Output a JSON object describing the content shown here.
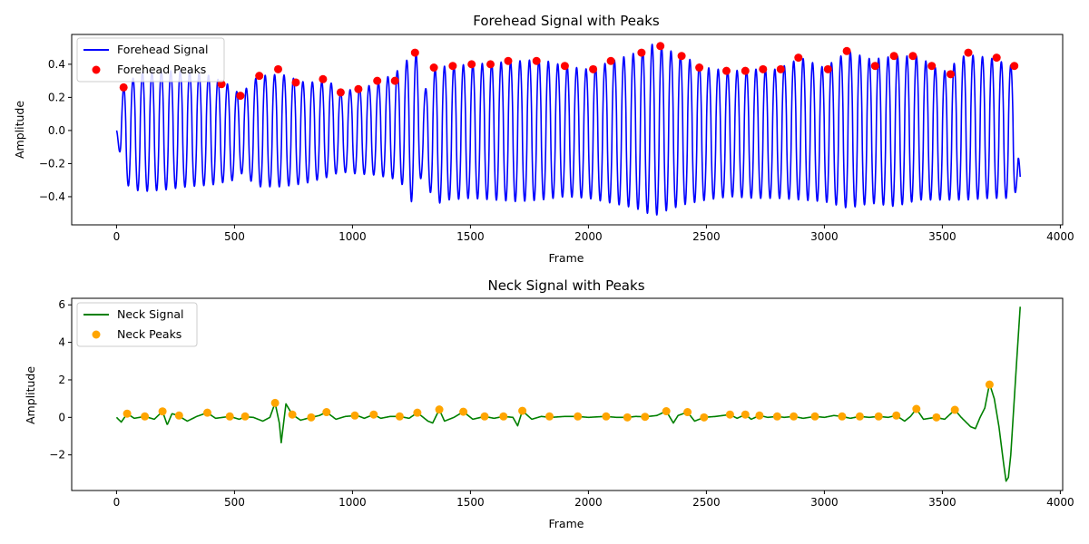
{
  "chart_data": [
    {
      "type": "line",
      "title": "Forehead Signal with Peaks",
      "xlabel": "Frame",
      "ylabel": "Amplitude",
      "xlim": [
        -190,
        4010
      ],
      "ylim": [
        -0.57,
        0.58
      ],
      "xticks": [
        0,
        500,
        1000,
        1500,
        2000,
        2500,
        3000,
        3500,
        4000
      ],
      "yticks": [
        -0.4,
        -0.2,
        0.0,
        0.2,
        0.4
      ],
      "ytick_labels": [
        "−0.4",
        "−0.2",
        "0.0",
        "0.2",
        "0.4"
      ],
      "legend_position": "upper-left",
      "colors": {
        "line": "#0000ff",
        "peaks": "#ff0000"
      },
      "series": [
        {
          "name": "Forehead Signal",
          "kind": "line",
          "x_start": 0,
          "x_end": 3830,
          "oscillation_period": 40,
          "envelope_x": [
            0,
            30,
            100,
            200,
            300,
            400,
            500,
            520,
            600,
            700,
            800,
            900,
            950,
            1000,
            1100,
            1200,
            1250,
            1270,
            1300,
            1350,
            1400,
            1500,
            1600,
            1700,
            1800,
            1900,
            2000,
            2100,
            2200,
            2250,
            2280,
            2300,
            2400,
            2500,
            2600,
            2700,
            2800,
            2900,
            3000,
            3100,
            3200,
            3300,
            3400,
            3500,
            3600,
            3700,
            3800,
            3830
          ],
          "envelope_max": [
            0.0,
            0.27,
            0.35,
            0.36,
            0.36,
            0.33,
            0.26,
            0.21,
            0.33,
            0.34,
            0.29,
            0.3,
            0.23,
            0.25,
            0.28,
            0.37,
            0.46,
            0.47,
            0.22,
            0.38,
            0.39,
            0.4,
            0.41,
            0.42,
            0.43,
            0.39,
            0.37,
            0.42,
            0.47,
            0.5,
            0.53,
            0.51,
            0.45,
            0.38,
            0.36,
            0.37,
            0.37,
            0.44,
            0.38,
            0.48,
            0.43,
            0.45,
            0.45,
            0.35,
            0.46,
            0.44,
            0.39,
            -0.28
          ],
          "envelope_min": [
            0.0,
            -0.32,
            -0.37,
            -0.36,
            -0.34,
            -0.33,
            -0.3,
            -0.25,
            -0.34,
            -0.34,
            -0.32,
            -0.28,
            -0.25,
            -0.26,
            -0.27,
            -0.3,
            -0.43,
            -0.35,
            -0.26,
            -0.45,
            -0.42,
            -0.41,
            -0.42,
            -0.43,
            -0.42,
            -0.4,
            -0.41,
            -0.44,
            -0.47,
            -0.5,
            -0.52,
            -0.5,
            -0.45,
            -0.42,
            -0.4,
            -0.41,
            -0.41,
            -0.42,
            -0.43,
            -0.47,
            -0.44,
            -0.46,
            -0.42,
            -0.42,
            -0.42,
            -0.41,
            -0.41,
            -0.3
          ]
        },
        {
          "name": "Forehead Peaks",
          "kind": "scatter",
          "x": [
            30,
            445,
            525,
            605,
            685,
            760,
            875,
            950,
            1025,
            1105,
            1180,
            1265,
            1345,
            1425,
            1505,
            1585,
            1660,
            1780,
            1900,
            2020,
            2095,
            2225,
            2305,
            2395,
            2470,
            2585,
            2665,
            2740,
            2815,
            2890,
            3015,
            3095,
            3215,
            3295,
            3375,
            3455,
            3535,
            3610,
            3730,
            3805
          ],
          "y": [
            0.26,
            0.28,
            0.21,
            0.33,
            0.37,
            0.29,
            0.31,
            0.23,
            0.25,
            0.3,
            0.3,
            0.47,
            0.38,
            0.39,
            0.4,
            0.4,
            0.42,
            0.42,
            0.39,
            0.37,
            0.42,
            0.47,
            0.51,
            0.45,
            0.38,
            0.36,
            0.36,
            0.37,
            0.37,
            0.44,
            0.37,
            0.48,
            0.39,
            0.45,
            0.45,
            0.39,
            0.34,
            0.47,
            0.44,
            0.39
          ]
        }
      ]
    },
    {
      "type": "line",
      "title": "Neck Signal with Peaks",
      "xlabel": "Frame",
      "ylabel": "Amplitude",
      "xlim": [
        -190,
        4010
      ],
      "ylim": [
        -3.9,
        6.35
      ],
      "xticks": [
        0,
        500,
        1000,
        1500,
        2000,
        2500,
        3000,
        3500,
        4000
      ],
      "yticks": [
        -2,
        0,
        2,
        4,
        6
      ],
      "ytick_labels": [
        "−2",
        "0",
        "2",
        "4",
        "6"
      ],
      "legend_position": "upper-left",
      "colors": {
        "line": "#008000",
        "peaks": "#ffa500"
      },
      "series": [
        {
          "name": "Neck Signal",
          "kind": "line",
          "x": [
            0,
            20,
            45,
            75,
            120,
            160,
            195,
            215,
            235,
            260,
            300,
            340,
            385,
            420,
            480,
            520,
            545,
            580,
            620,
            650,
            672,
            690,
            698,
            718,
            745,
            780,
            825,
            860,
            890,
            930,
            970,
            1020,
            1050,
            1090,
            1120,
            1160,
            1200,
            1240,
            1275,
            1320,
            1340,
            1368,
            1390,
            1430,
            1470,
            1510,
            1560,
            1600,
            1640,
            1680,
            1700,
            1720,
            1760,
            1800,
            1840,
            1900,
            1950,
            2000,
            2070,
            2120,
            2165,
            2200,
            2240,
            2290,
            2330,
            2360,
            2380,
            2420,
            2450,
            2490,
            2540,
            2600,
            2630,
            2665,
            2690,
            2725,
            2760,
            2800,
            2830,
            2870,
            2910,
            2960,
            3000,
            3040,
            3075,
            3110,
            3150,
            3190,
            3230,
            3270,
            3305,
            3340,
            3365,
            3390,
            3420,
            3470,
            3510,
            3553,
            3580,
            3620,
            3640,
            3660,
            3680,
            3700,
            3720,
            3740,
            3760,
            3770,
            3780,
            3790,
            3800,
            3815,
            3830
          ],
          "y": [
            0.0,
            -0.25,
            0.2,
            -0.05,
            0.05,
            -0.1,
            0.32,
            -0.4,
            0.2,
            0.1,
            -0.2,
            0.05,
            0.25,
            -0.05,
            0.05,
            -0.1,
            0.03,
            0.0,
            -0.2,
            0.0,
            0.77,
            -0.3,
            -1.35,
            0.72,
            0.15,
            -0.15,
            0.0,
            0.1,
            0.28,
            -0.1,
            0.05,
            0.1,
            -0.05,
            0.15,
            -0.05,
            0.05,
            0.05,
            -0.05,
            0.25,
            -0.2,
            -0.3,
            0.42,
            -0.2,
            0.0,
            0.3,
            -0.1,
            0.05,
            -0.05,
            0.05,
            0.0,
            -0.45,
            0.35,
            -0.1,
            0.05,
            0.0,
            0.05,
            0.05,
            0.0,
            0.05,
            0.0,
            0.0,
            0.05,
            0.03,
            0.1,
            0.33,
            -0.3,
            0.1,
            0.28,
            -0.2,
            0.0,
            0.05,
            0.15,
            -0.05,
            0.15,
            -0.1,
            0.1,
            0.0,
            0.05,
            0.0,
            0.05,
            -0.05,
            0.05,
            0.0,
            0.1,
            0.05,
            -0.05,
            0.05,
            0.0,
            0.05,
            0.0,
            0.1,
            -0.2,
            0.05,
            0.45,
            -0.1,
            0.0,
            -0.1,
            0.4,
            0.0,
            -0.5,
            -0.6,
            0.0,
            0.5,
            1.8,
            1.0,
            -0.5,
            -2.5,
            -3.4,
            -3.2,
            -2.0,
            0.0,
            3.0,
            5.9
          ]
        },
        {
          "name": "Neck Peaks",
          "kind": "scatter",
          "x": [
            45,
            120,
            195,
            265,
            385,
            480,
            545,
            672,
            745,
            825,
            890,
            1010,
            1090,
            1200,
            1275,
            1368,
            1470,
            1560,
            1640,
            1720,
            1835,
            1955,
            2075,
            2165,
            2240,
            2330,
            2420,
            2490,
            2600,
            2665,
            2725,
            2800,
            2870,
            2960,
            3075,
            3150,
            3230,
            3305,
            3390,
            3475,
            3553,
            3700
          ],
          "y": [
            0.2,
            0.05,
            0.32,
            0.1,
            0.25,
            0.05,
            0.05,
            0.77,
            0.15,
            0.0,
            0.28,
            0.1,
            0.15,
            0.05,
            0.25,
            0.42,
            0.3,
            0.05,
            0.05,
            0.35,
            0.05,
            0.05,
            0.05,
            0.0,
            0.03,
            0.33,
            0.28,
            0.0,
            0.15,
            0.15,
            0.1,
            0.05,
            0.05,
            0.05,
            0.05,
            0.05,
            0.05,
            0.1,
            0.45,
            0.0,
            0.4,
            1.75
          ]
        }
      ]
    }
  ]
}
